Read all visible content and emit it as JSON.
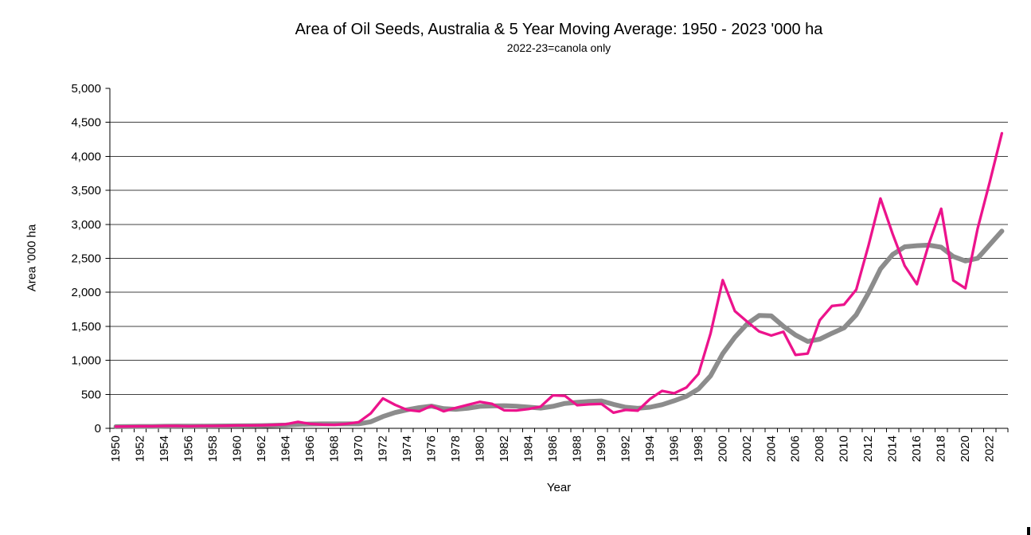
{
  "chart_data": {
    "type": "line",
    "title": "Area of Oil Seeds, Australia & 5 Year Moving Average: 1950 - 2023 '000 ha",
    "subtitle": "2022-23=canola only",
    "xlabel": "Year",
    "ylabel": "Area '000 ha",
    "ylim": [
      0,
      5000
    ],
    "ytick_step": 500,
    "x_label_interval": 2,
    "grid": "horizontal",
    "legend": "none",
    "x": [
      1950,
      1951,
      1952,
      1953,
      1954,
      1955,
      1956,
      1957,
      1958,
      1959,
      1960,
      1961,
      1962,
      1963,
      1964,
      1965,
      1966,
      1967,
      1968,
      1969,
      1970,
      1971,
      1972,
      1973,
      1974,
      1975,
      1976,
      1977,
      1978,
      1979,
      1980,
      1981,
      1982,
      1983,
      1984,
      1985,
      1986,
      1987,
      1988,
      1989,
      1990,
      1991,
      1992,
      1993,
      1994,
      1995,
      1996,
      1997,
      1998,
      1999,
      2000,
      2001,
      2002,
      2003,
      2004,
      2005,
      2006,
      2007,
      2008,
      2009,
      2010,
      2011,
      2012,
      2013,
      2014,
      2015,
      2016,
      2017,
      2018,
      2019,
      2020,
      2021,
      2022,
      2023
    ],
    "series": [
      {
        "id": "area-line",
        "name": "Area of oil seeds ('000 ha)",
        "color": "#EC138C",
        "stroke_width": 3.3,
        "z": 1,
        "values": [
          25,
          28,
          30,
          30,
          35,
          35,
          30,
          35,
          35,
          38,
          42,
          42,
          45,
          50,
          60,
          95,
          65,
          55,
          50,
          65,
          90,
          220,
          440,
          345,
          270,
          250,
          330,
          250,
          300,
          345,
          390,
          360,
          265,
          262,
          285,
          320,
          485,
          478,
          340,
          352,
          360,
          230,
          270,
          260,
          430,
          550,
          515,
          600,
          800,
          1395,
          2180,
          1725,
          1570,
          1425,
          1365,
          1420,
          1080,
          1100,
          1590,
          1800,
          1820,
          2040,
          2680,
          3380,
          2860,
          2390,
          2120,
          2720,
          3230,
          2175,
          2060,
          2935,
          3620,
          4340
        ]
      },
      {
        "id": "moving-average-line",
        "name": "5 year moving average",
        "color": "#8C8C8C",
        "stroke_width": 6,
        "z": 0,
        "values": [
          25,
          27,
          28,
          28,
          30,
          32,
          32,
          33,
          34,
          35,
          36,
          38,
          40,
          43,
          48,
          58,
          63,
          65,
          65,
          66,
          65,
          96,
          173,
          232,
          273,
          305,
          327,
          289,
          280,
          295,
          323,
          329,
          332,
          324,
          312,
          298,
          323,
          366,
          382,
          395,
          403,
          352,
          310,
          294,
          310,
          348,
          405,
          471,
          579,
          772,
          1098,
          1340,
          1534,
          1659,
          1653,
          1501,
          1372,
          1278,
          1311,
          1398,
          1478,
          1670,
          1986,
          2344,
          2556,
          2670,
          2686,
          2694,
          2664,
          2527,
          2461,
          2500,
          2700,
          2900
        ]
      }
    ]
  }
}
